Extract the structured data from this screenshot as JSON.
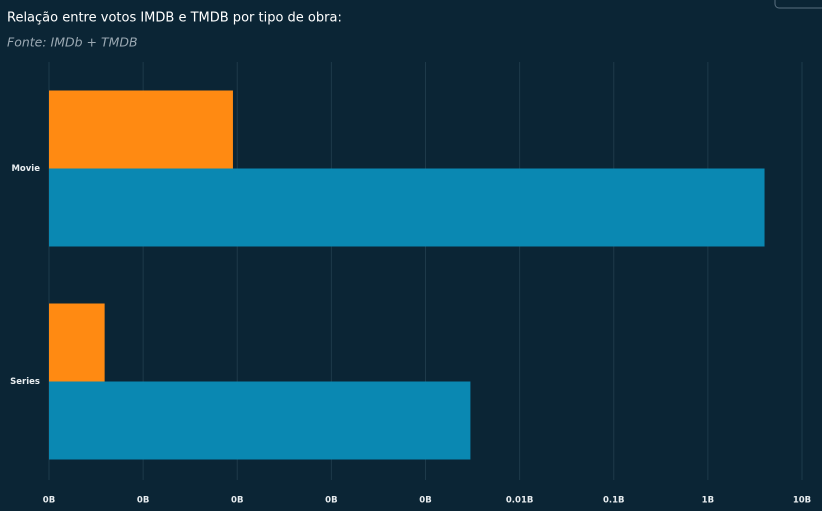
{
  "chart_data": {
    "type": "bar",
    "orientation": "horizontal",
    "title": "Relação entre votos IMDB e TMDB por tipo de obra:",
    "subtitle": "Fonte: IMDb + TMDB",
    "categories": [
      "Movie",
      "Series"
    ],
    "series": [
      {
        "color": "#ff8a12",
        "values": [
          9e-06,
          3.9e-07
        ]
      },
      {
        "color": "#0a88b2",
        "values": [
          4.0,
          0.003
        ]
      }
    ],
    "log_scale": true,
    "xlim": [
      1e-07,
      10
    ],
    "xticks": [
      {
        "value": 1e-07,
        "label": "0B"
      },
      {
        "value": 1e-06,
        "label": "0B"
      },
      {
        "value": 1e-05,
        "label": "0B"
      },
      {
        "value": 0.0001,
        "label": "0B"
      },
      {
        "value": 0.001,
        "label": "0B"
      },
      {
        "value": 0.01,
        "label": "0.01B"
      },
      {
        "value": 0.1,
        "label": "0.1B"
      },
      {
        "value": 1,
        "label": "1B"
      },
      {
        "value": 10,
        "label": "10B"
      }
    ],
    "grid": true
  }
}
